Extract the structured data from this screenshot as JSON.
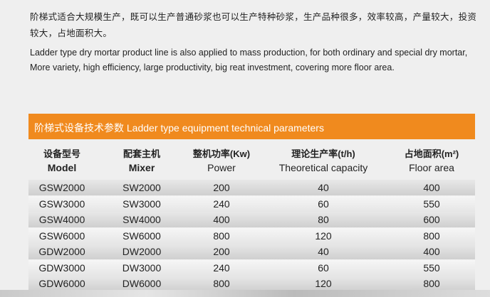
{
  "intro": {
    "chinese": "阶梯式适合大规模生产，既可以生产普通砂浆也可以生产特种砂浆，生产品种很多，效率较高，产量较大，投资较大，占地面积大。",
    "english": "Ladder type dry mortar product line is also applied to mass production, for both ordinary and special dry mortar, More variety, high efficiency, large productivity, big reat investment, covering more floor area."
  },
  "table": {
    "title": "阶梯式设备技术参数 Ladder type equipment technical parameters",
    "headers": [
      {
        "chinese": "设备型号",
        "english": "Model"
      },
      {
        "chinese": "配套主机",
        "english": "Mixer"
      },
      {
        "chinese": "整机功率(Kw)",
        "english": "Power"
      },
      {
        "chinese": "理论生产率(t/h)",
        "english": "Theoretical capacity"
      },
      {
        "chinese": "占地面积(m²)",
        "english": "Floor area"
      }
    ],
    "rows": [
      [
        "GSW2000",
        "SW2000",
        200,
        40,
        400
      ],
      [
        "GSW3000",
        "SW3000",
        240,
        60,
        550
      ],
      [
        "GSW4000",
        "SW4000",
        400,
        80,
        600
      ],
      [
        "GSW6000",
        "SW6000",
        800,
        120,
        800
      ],
      [
        "GDW2000",
        "DW2000",
        200,
        40,
        400
      ],
      [
        "GDW3000",
        "DW3000",
        240,
        60,
        550
      ],
      [
        "GDW6000",
        "DW6000",
        800,
        120,
        800
      ]
    ]
  }
}
